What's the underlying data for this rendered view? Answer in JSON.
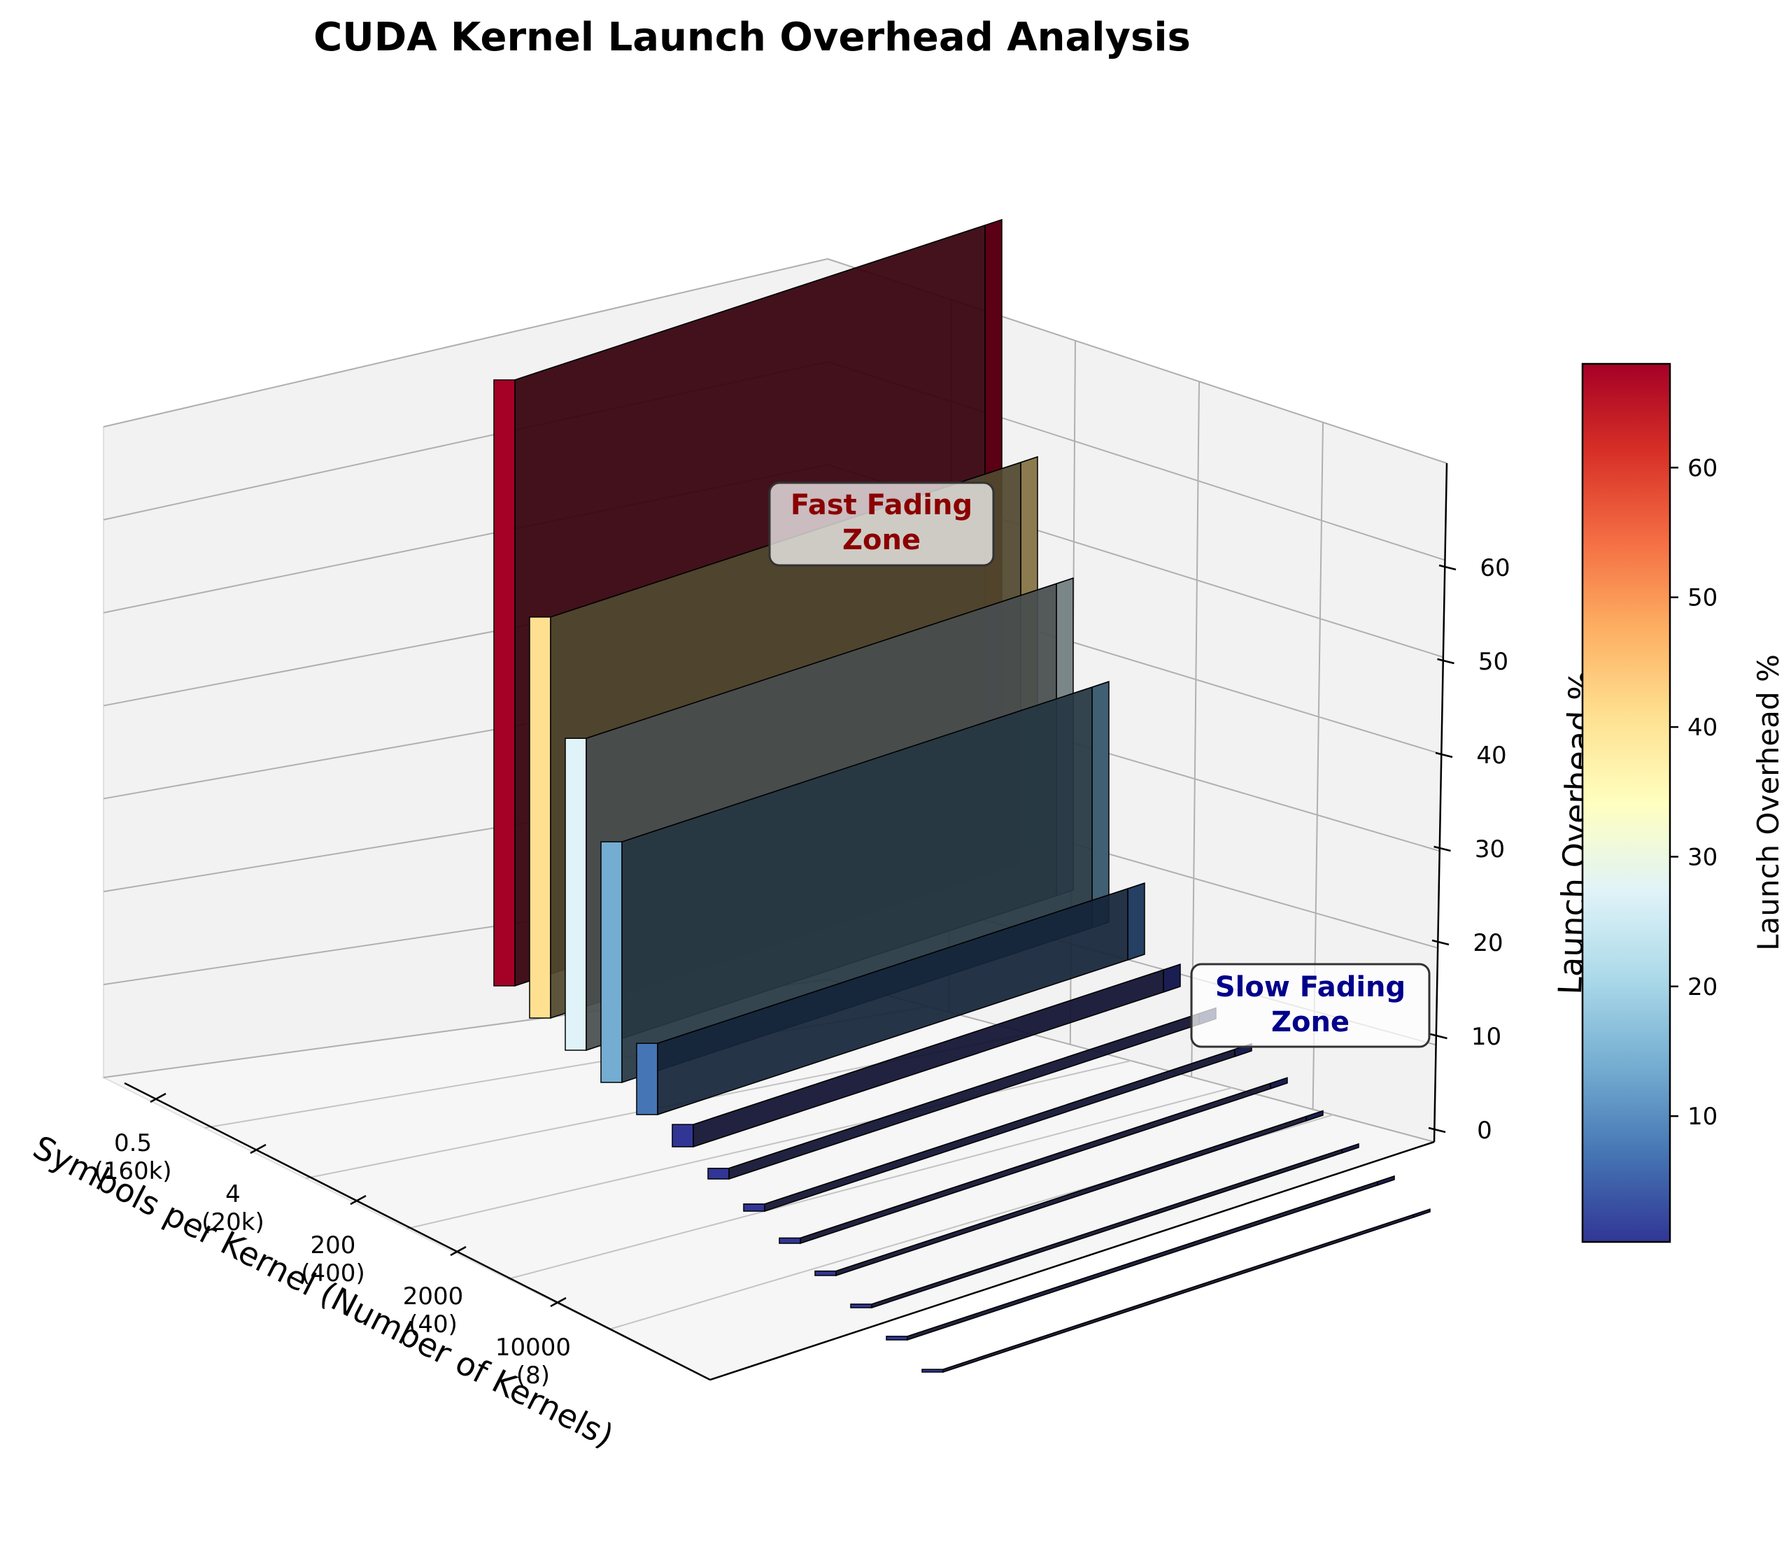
{
  "chart_data": {
    "type": "bar",
    "title": "CUDA Kernel Launch Overhead Analysis",
    "xlabel": "Symbols per Kernel (Number of Kernels)",
    "ylabel": "",
    "zlabel": "Launch Overhead %",
    "colorbar_label": "Launch Overhead %",
    "colormap": "RdYlBu_r",
    "colorbar_range": [
      0.3,
      68
    ],
    "colorbar_ticks": [
      "10",
      "20",
      "30",
      "40",
      "50",
      "60"
    ],
    "zlim": [
      0,
      68
    ],
    "z_ticks": [
      "0",
      "10",
      "20",
      "30",
      "40",
      "50",
      "60"
    ],
    "x_ticks": [
      {
        "value": "0.5",
        "kernels": "(160k)"
      },
      {
        "value": "4",
        "kernels": "(20k)"
      },
      {
        "value": "200",
        "kernels": "(400)"
      },
      {
        "value": "2000",
        "kernels": "(40)"
      },
      {
        "value": "10000",
        "kernels": "(8)"
      }
    ],
    "values": [
      68,
      45,
      35,
      27,
      8,
      2.5,
      1.2,
      0.8,
      0.6,
      0.5,
      0.4,
      0.4,
      0.3
    ],
    "colors": [
      "#a50026",
      "#fee090",
      "#e0f3f8",
      "#74add1",
      "#4575b4",
      "#313695",
      "#313695",
      "#313695",
      "#313695",
      "#313695",
      "#313695",
      "#313695",
      "#313695"
    ],
    "annotations": [
      {
        "text_lines": [
          "Fast Fading",
          "Zone"
        ],
        "color": "#8b0000"
      },
      {
        "text_lines": [
          "Slow Fading",
          "Zone"
        ],
        "color": "#00008b"
      }
    ],
    "grid": true
  }
}
